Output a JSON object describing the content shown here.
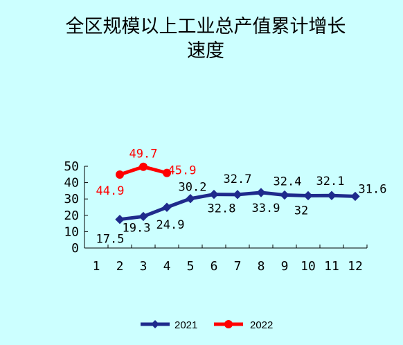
{
  "chart_data": {
    "type": "line",
    "title_lines": [
      "全区规模以上工业总产值累计增长",
      "速度"
    ],
    "x": [
      1,
      2,
      3,
      4,
      5,
      6,
      7,
      8,
      9,
      10,
      11,
      12
    ],
    "x_tick_labels": [
      "1",
      "2",
      "3",
      "4",
      "5",
      "6",
      "7",
      "8",
      "9",
      "10",
      "11",
      "12"
    ],
    "ylim": [
      0,
      50
    ],
    "y_ticks": [
      0,
      10,
      20,
      30,
      40,
      50
    ],
    "y_tick_labels": [
      "0",
      "10",
      "20",
      "30",
      "40",
      "50"
    ],
    "grid": false,
    "legend_position": "bottom",
    "series": [
      {
        "name": "2021",
        "color": "#1f2a8c",
        "marker": "diamond",
        "x": [
          2,
          3,
          4,
          5,
          6,
          7,
          8,
          9,
          10,
          11,
          12
        ],
        "values": [
          17.5,
          19.3,
          24.9,
          30.2,
          32.8,
          32.7,
          33.9,
          32.4,
          32,
          32.1,
          31.6
        ],
        "labels": [
          "17.5",
          "19.3",
          "24.9",
          "30.2",
          "32.8",
          "32.7",
          "33.9",
          "32.4",
          "32",
          "32.1",
          "31.6"
        ]
      },
      {
        "name": "2022",
        "color": "#ff0000",
        "marker": "circle",
        "x": [
          2,
          3,
          4
        ],
        "values": [
          44.9,
          49.7,
          45.9
        ],
        "labels": [
          "44.9",
          "49.7",
          "45.9"
        ]
      }
    ]
  }
}
